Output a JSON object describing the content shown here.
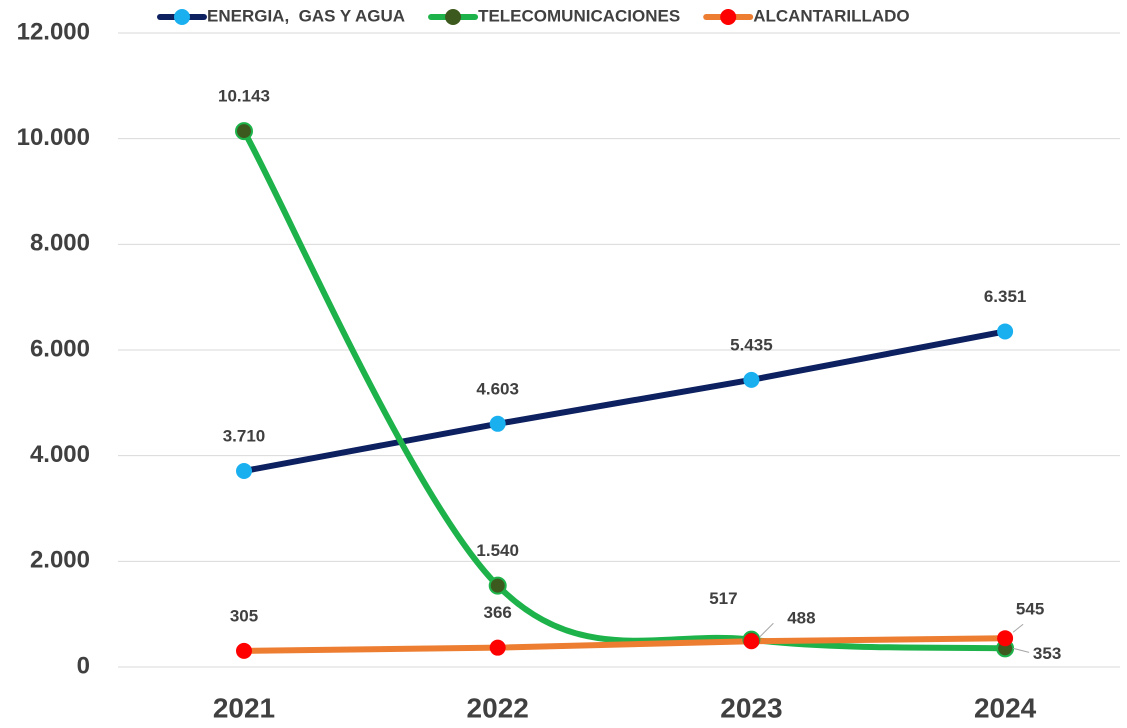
{
  "chart_data": {
    "type": "line",
    "categories": [
      "2021",
      "2022",
      "2023",
      "2024"
    ],
    "series": [
      {
        "name": "ENERGIA,  GAS Y AGUA",
        "color": "#0d2060",
        "marker_color": "#1ab0f0",
        "smooth": false,
        "values": [
          3710,
          4603,
          5435,
          6351
        ],
        "value_labels": [
          "3.710",
          "4.603",
          "5.435",
          "6.351"
        ]
      },
      {
        "name": "TELECOMUNICACIONES",
        "color": "#1db34a",
        "marker_color": "#3d5a1e",
        "smooth": true,
        "values": [
          10143,
          1540,
          517,
          353
        ],
        "value_labels": [
          "10.143",
          "1.540",
          "517",
          "353"
        ]
      },
      {
        "name": "ALCANTARILLADO",
        "color": "#ed7d31",
        "marker_color": "#ff0000",
        "smooth": false,
        "values": [
          305,
          366,
          488,
          545
        ],
        "value_labels": [
          "305",
          "366",
          "488",
          "545"
        ]
      }
    ],
    "ylim": [
      0,
      12000
    ],
    "yticks": [
      0,
      {
        "value": 2000,
        "label": "2.000"
      },
      {
        "value": 4000,
        "label": "4.000"
      },
      {
        "value": 6000,
        "label": "6.000"
      },
      {
        "value": 8000,
        "label": "8.000"
      },
      {
        "value": 10000,
        "label": "10.000"
      },
      {
        "value": 12000,
        "label": "12.000"
      }
    ],
    "grid": true,
    "legend": "top"
  }
}
